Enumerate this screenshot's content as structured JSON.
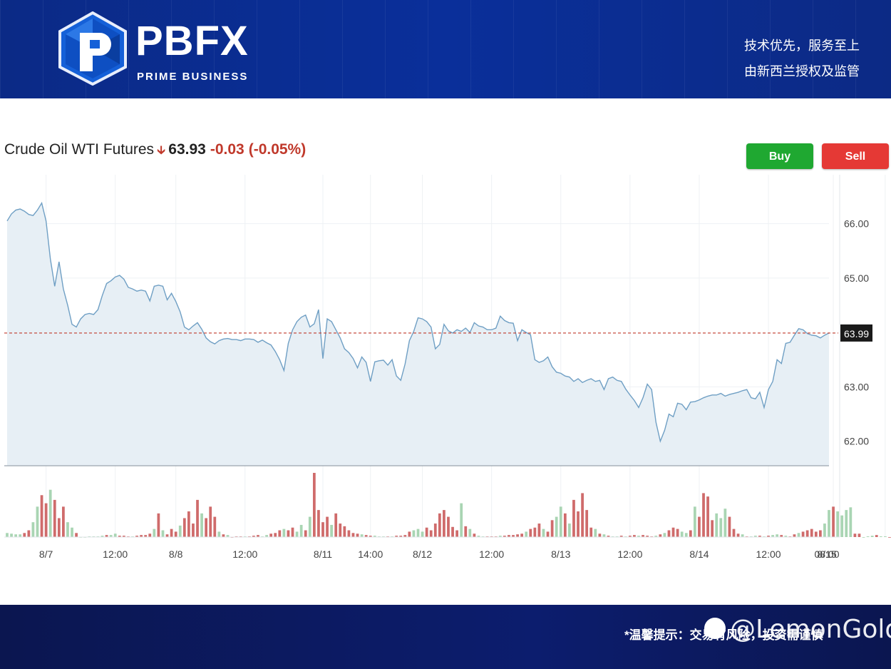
{
  "header": {
    "brand": "PBFX",
    "brand_sub": "PRIME BUSINESS",
    "slogan_line1": "技术优先，服务至上",
    "slogan_line2": "由新西兰授权及监管"
  },
  "instrument": {
    "name": "Crude Oil WTI Futures",
    "price": "63.93",
    "change": "-0.03",
    "change_pct": "(-0.05%)"
  },
  "buttons": {
    "buy": "Buy",
    "sell": "Sell"
  },
  "footer": {
    "notice": "*温馨提示：交易有风险，投资需谨慎",
    "watermark": "@LemonGold"
  },
  "colors": {
    "line": "#6f9fc4",
    "area": "#e7eff5",
    "up_volume": "#a9d5b3",
    "down_volume": "#cf6b6b",
    "reference_line": "#c0392b",
    "buy": "#1fa831",
    "sell": "#e53935"
  },
  "chart_data": {
    "type": "area",
    "ylim": [
      61.55,
      66.9
    ],
    "y_ticks": [
      "66.00",
      "65.00",
      "63.00",
      "62.00"
    ],
    "y_tick_values": [
      66.0,
      65.0,
      63.0,
      62.0
    ],
    "x_tick_labels": [
      "8/7",
      "12:00",
      "8/8",
      "12:00",
      "8/11",
      "14:00",
      "8/12",
      "12:00",
      "8/13",
      "12:00",
      "8/14",
      "12:00",
      "8/15",
      "08:00"
    ],
    "x_tick_index": [
      9,
      25,
      39,
      55,
      73,
      84,
      96,
      112,
      128,
      144,
      160,
      176,
      191,
      203
    ],
    "last_price_label": "63.99",
    "last_price": 63.99,
    "price_series": [
      66.05,
      66.18,
      66.25,
      66.27,
      66.23,
      66.17,
      66.15,
      66.25,
      66.38,
      66.05,
      65.35,
      64.85,
      65.3,
      64.8,
      64.5,
      64.15,
      64.1,
      64.25,
      64.33,
      64.35,
      64.33,
      64.42,
      64.68,
      64.9,
      64.95,
      65.02,
      65.05,
      64.98,
      64.83,
      64.8,
      64.76,
      64.78,
      64.76,
      64.58,
      64.85,
      64.87,
      64.85,
      64.6,
      64.72,
      64.57,
      64.38,
      64.1,
      64.05,
      64.12,
      64.18,
      64.06,
      63.9,
      63.83,
      63.79,
      63.85,
      63.88,
      63.89,
      63.87,
      63.87,
      63.85,
      63.88,
      63.88,
      63.87,
      63.82,
      63.86,
      63.81,
      63.77,
      63.65,
      63.5,
      63.3,
      63.8,
      64.05,
      64.2,
      64.28,
      64.32,
      64.1,
      64.16,
      64.42,
      63.52,
      64.25,
      64.2,
      64.05,
      63.9,
      63.7,
      63.63,
      63.52,
      63.35,
      63.55,
      63.45,
      63.1,
      63.46,
      63.48,
      63.49,
      63.4,
      63.5,
      63.2,
      63.12,
      63.42,
      63.85,
      64.02,
      64.27,
      64.25,
      64.2,
      64.1,
      63.7,
      63.78,
      64.15,
      64.03,
      63.99,
      64.05,
      64.02,
      64.08,
      64.0,
      64.18,
      64.12,
      64.1,
      64.05,
      64.05,
      64.08,
      64.3,
      64.22,
      64.18,
      64.17,
      63.85,
      64.05,
      64.0,
      63.96,
      63.5,
      63.45,
      63.48,
      63.55,
      63.37,
      63.27,
      63.25,
      63.2,
      63.18,
      63.1,
      63.15,
      63.08,
      63.12,
      63.15,
      63.1,
      63.12,
      62.95,
      63.15,
      63.18,
      63.12,
      63.1,
      62.96,
      62.85,
      62.75,
      62.62,
      62.8,
      63.05,
      62.95,
      62.35,
      62.0,
      62.2,
      62.5,
      62.45,
      62.7,
      62.68,
      62.58,
      62.72,
      62.73,
      62.76,
      62.8,
      62.83,
      62.85,
      62.85,
      62.88,
      62.83,
      62.86,
      62.88,
      62.9,
      62.93,
      62.95,
      62.8,
      62.78,
      62.9,
      62.62,
      62.95,
      63.1,
      63.5,
      63.43,
      63.8,
      63.82,
      63.95,
      64.07,
      64.05,
      63.98,
      63.95,
      63.94,
      63.9,
      63.95,
      63.99
    ],
    "volume_series": [
      6,
      5,
      4,
      4,
      6,
      10,
      22,
      45,
      62,
      50,
      70,
      55,
      28,
      45,
      22,
      14,
      6,
      0,
      0,
      1,
      1,
      1,
      2,
      3,
      3,
      5,
      2,
      2,
      1,
      1,
      2,
      3,
      3,
      5,
      12,
      35,
      10,
      4,
      12,
      8,
      17,
      28,
      38,
      20,
      55,
      35,
      28,
      45,
      30,
      8,
      4,
      3,
      0,
      1,
      1,
      1,
      1,
      2,
      3,
      1,
      3,
      5,
      6,
      10,
      12,
      10,
      14,
      8,
      18,
      10,
      30,
      95,
      40,
      22,
      30,
      18,
      35,
      20,
      16,
      10,
      6,
      5,
      4,
      3,
      2,
      2,
      1,
      1,
      1,
      1,
      2,
      2,
      3,
      8,
      10,
      12,
      8,
      14,
      10,
      20,
      35,
      40,
      30,
      15,
      10,
      50,
      16,
      12,
      5,
      2,
      1,
      1,
      1,
      1,
      2,
      2,
      3,
      3,
      4,
      5,
      8,
      12,
      14,
      20,
      12,
      8,
      25,
      30,
      45,
      35,
      20,
      55,
      38,
      65,
      40,
      14,
      12,
      5,
      4,
      2,
      1,
      1,
      2,
      1,
      2,
      3,
      2,
      3,
      2,
      1,
      2,
      4,
      6,
      10,
      14,
      12,
      8,
      6,
      10,
      45,
      30,
      65,
      60,
      25,
      35,
      28,
      42,
      30,
      12,
      5,
      4,
      1,
      1,
      2,
      2,
      1,
      2,
      3,
      4,
      3,
      2,
      1,
      4,
      6,
      8,
      10,
      12,
      8,
      10,
      20,
      40,
      45,
      38,
      32,
      40,
      44,
      5,
      5,
      0,
      1,
      2,
      3,
      1,
      1,
      0,
      0,
      0,
      0,
      0
    ],
    "volume_up": [
      true,
      true,
      true,
      true,
      false,
      false,
      true,
      true,
      false,
      false,
      true,
      false,
      false,
      false,
      true,
      true,
      false,
      true,
      true,
      true,
      true,
      true,
      true,
      false,
      true,
      true,
      false,
      false,
      false,
      true,
      false,
      false,
      false,
      false,
      true,
      false,
      true,
      false,
      false,
      false,
      true,
      false,
      false,
      false,
      false,
      true,
      false,
      false,
      false,
      true,
      false,
      true,
      false,
      false,
      false,
      true,
      false,
      false,
      false,
      true,
      true,
      false,
      false,
      false,
      true,
      false,
      false,
      true,
      true,
      false,
      true,
      false,
      false,
      false,
      false,
      true,
      false,
      false,
      false,
      false,
      false,
      false,
      true,
      false,
      false,
      true,
      true,
      true,
      false,
      true,
      false,
      false,
      false,
      false,
      true,
      true,
      true,
      false,
      false,
      false,
      false,
      false,
      false,
      false,
      false,
      true,
      false,
      true,
      false,
      true,
      true,
      false,
      false,
      false,
      true,
      false,
      false,
      false,
      false,
      false,
      true,
      false,
      false,
      false,
      true,
      false,
      false,
      true,
      true,
      false,
      true,
      false,
      false,
      false,
      false,
      false,
      true,
      false,
      true,
      false,
      true,
      true,
      false,
      true,
      false,
      false,
      true,
      false,
      false,
      false,
      true,
      false,
      true,
      false,
      false,
      false,
      true,
      true,
      false,
      true,
      false,
      false,
      false,
      false,
      true,
      true,
      true,
      false,
      false,
      false,
      true,
      false,
      true,
      true,
      false,
      true,
      false,
      true,
      true,
      false,
      true,
      false,
      false,
      true,
      false,
      false,
      false,
      false,
      false,
      true,
      true,
      false,
      true,
      true,
      true,
      true,
      false,
      false,
      true,
      true,
      true,
      false,
      true,
      true,
      false,
      true,
      true
    ]
  }
}
